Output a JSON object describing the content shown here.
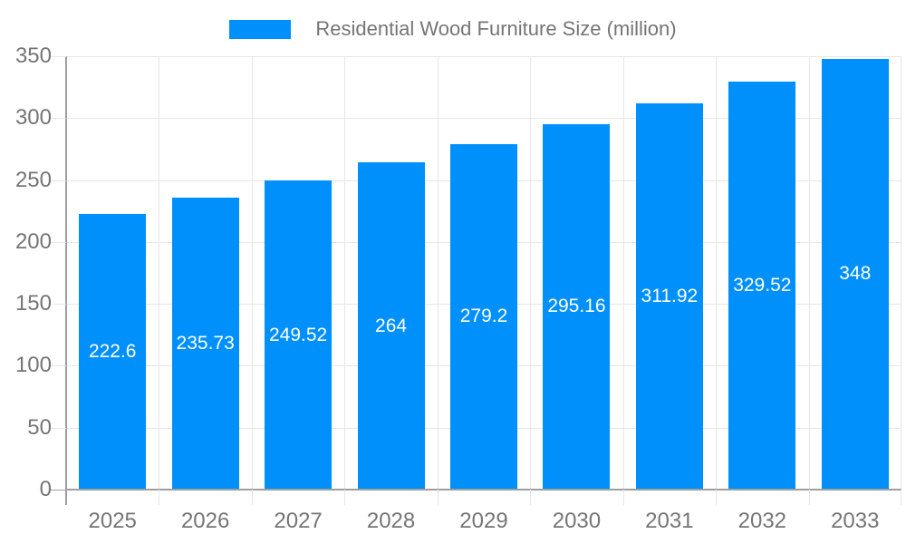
{
  "chart_data": {
    "type": "bar",
    "title": "Residential Wood Furniture Size (million)",
    "categories": [
      "2025",
      "2026",
      "2027",
      "2028",
      "2029",
      "2030",
      "2031",
      "2032",
      "2033"
    ],
    "values": [
      222.6,
      235.73,
      249.52,
      264,
      279.2,
      295.16,
      311.92,
      329.52,
      348
    ],
    "value_labels": [
      "222.6",
      "235.73",
      "249.52",
      "264",
      "279.2",
      "295.16",
      "311.92",
      "329.52",
      "348"
    ],
    "yticks": [
      "0",
      "50",
      "100",
      "150",
      "200",
      "250",
      "300",
      "350"
    ],
    "ytick_values": [
      0,
      50,
      100,
      150,
      200,
      250,
      300,
      350
    ],
    "ylim": [
      0,
      350
    ],
    "grid": true,
    "legend_position": "top",
    "colors": {
      "bar": "#0090FB",
      "axis_label_text": "#757575",
      "value_label_text": "#FFFFFF",
      "gridline": "#E6E6E6",
      "axis_line": "#9E9E9E",
      "background": "#FFFFFF"
    }
  }
}
